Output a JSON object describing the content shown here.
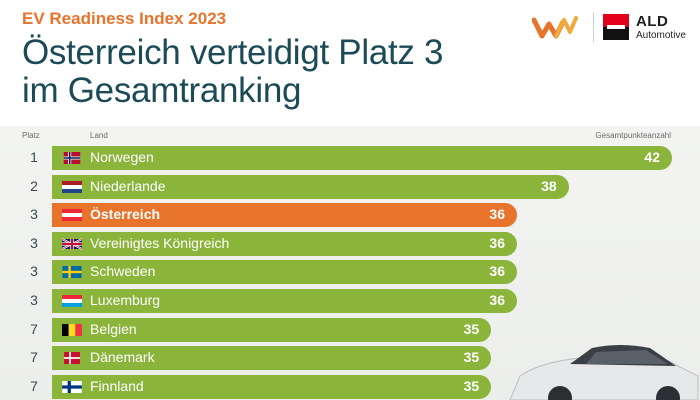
{
  "header": {
    "eyebrow": "EV Readiness Index 2023",
    "headline_line1": "Österreich verteidigt Platz 3",
    "headline_line2": "im Gesamtranking"
  },
  "logos": {
    "partner_icon": "w-logo-icon",
    "ald_name": "ALD",
    "ald_sub": "Automotive"
  },
  "colors": {
    "accent_orange": "#e8742c",
    "bar_green": "#8ab43a",
    "headline_teal": "#1c4a56"
  },
  "chart_data": {
    "type": "bar",
    "orientation": "horizontal",
    "headers": {
      "rank": "Platz",
      "country": "Land",
      "score": "Gesamtpunkteanzahl"
    },
    "rows": [
      {
        "rank": "1",
        "country": "Norwegen",
        "flag": "norway-flag-icon",
        "value": 42,
        "highlight": false
      },
      {
        "rank": "2",
        "country": "Niederlande",
        "flag": "netherlands-flag-icon",
        "value": 38,
        "highlight": false
      },
      {
        "rank": "3",
        "country": "Österreich",
        "flag": "austria-flag-icon",
        "value": 36,
        "highlight": true
      },
      {
        "rank": "3",
        "country": "Vereinigtes Königreich",
        "flag": "uk-flag-icon",
        "value": 36,
        "highlight": false
      },
      {
        "rank": "3",
        "country": "Schweden",
        "flag": "sweden-flag-icon",
        "value": 36,
        "highlight": false
      },
      {
        "rank": "3",
        "country": "Luxemburg",
        "flag": "luxembourg-flag-icon",
        "value": 36,
        "highlight": false
      },
      {
        "rank": "7",
        "country": "Belgien",
        "flag": "belgium-flag-icon",
        "value": 35,
        "highlight": false
      },
      {
        "rank": "7",
        "country": "Dänemark",
        "flag": "denmark-flag-icon",
        "value": 35,
        "highlight": false
      },
      {
        "rank": "7",
        "country": "Finnland",
        "flag": "finland-flag-icon",
        "value": 35,
        "highlight": false
      }
    ],
    "grid": false
  }
}
